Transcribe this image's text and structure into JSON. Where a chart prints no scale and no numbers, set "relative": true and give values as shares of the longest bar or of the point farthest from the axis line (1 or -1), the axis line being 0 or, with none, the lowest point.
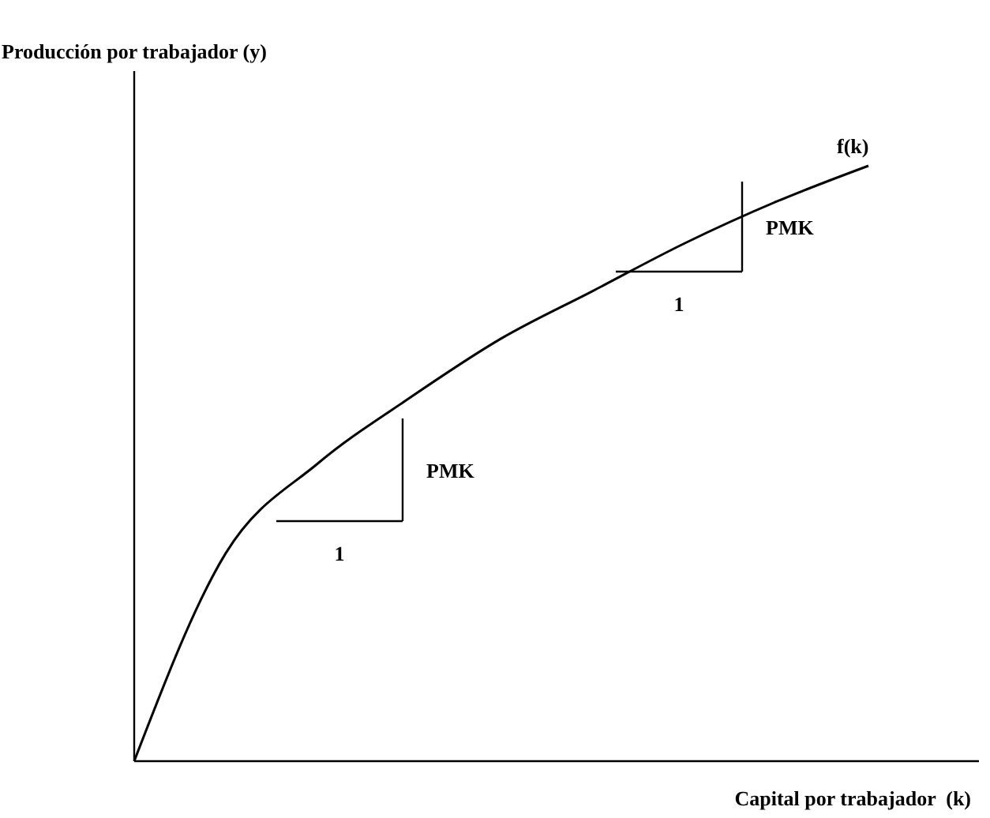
{
  "chart_data": {
    "type": "line",
    "relative": true,
    "xlabel": "Capital por trabajador  (k)",
    "ylabel": "Producción por trabajador (y)",
    "categories": [
      null,
      null,
      null,
      null,
      null,
      null,
      null,
      null,
      null
    ],
    "series": [
      {
        "color": "#000000",
        "values": [
          0,
          0.35,
          0.5,
          0.61,
          0.71,
          0.79,
          0.87,
          0.94,
          1
        ]
      }
    ],
    "annotations": [
      "f(k)",
      "PMK",
      "1",
      "PMK",
      "1"
    ],
    "marker": "none",
    "line_style": "solid"
  }
}
